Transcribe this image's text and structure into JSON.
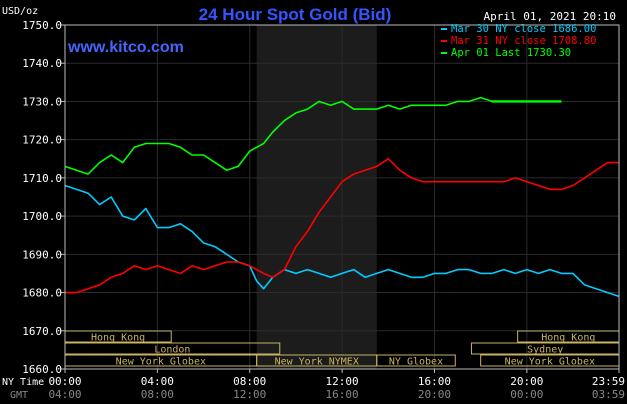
{
  "chart_data": {
    "type": "line",
    "title": "24 Hour Spot Gold (Bid)",
    "watermark": "www.kitco.com",
    "datetime": "April 01, 2021 20:10",
    "ylabel": "USD/oz",
    "ylim": [
      1660,
      1750
    ],
    "yticks": [
      "1750.0",
      "1740.0",
      "1730.0",
      "1720.0",
      "1710.0",
      "1700.0",
      "1690.0",
      "1680.0",
      "1670.0",
      "1660.0"
    ],
    "ny_time_label": "NY Time",
    "gmt_label": "GMT",
    "xticks_ny": [
      "00:00",
      "04:00",
      "08:00",
      "12:00",
      "16:00",
      "20:00",
      "23:59"
    ],
    "xticks_gmt": [
      "04:00",
      "08:00",
      "12:00",
      "16:00",
      "20:00",
      "00:00",
      "03:59"
    ],
    "grid": true,
    "legend_position": "top-right",
    "colors": {
      "background": "#000000",
      "grid": "#2a2a2a",
      "axis": "#bbbbbb",
      "title": "#3355ff",
      "watermark": "#4466ff",
      "shade": "#1c1c1c",
      "market": "#c8b464"
    },
    "shaded_hours": [
      8.3,
      13.5
    ],
    "series": [
      {
        "name": "Mar 30 NY close 1686.00",
        "color": "#00ccff",
        "x": [
          0,
          1,
          1.5,
          2,
          2.5,
          3,
          3.5,
          4,
          4.5,
          5,
          5.5,
          6,
          6.5,
          7,
          7.5,
          8,
          8.3,
          8.6,
          9,
          9.5,
          10,
          10.5,
          11,
          11.5,
          12,
          12.5,
          13,
          13.5,
          14,
          14.5,
          15,
          15.5,
          16,
          16.5,
          17,
          17.5,
          18,
          18.5,
          19,
          19.5,
          20,
          20.5,
          21,
          21.5,
          22,
          22.5,
          23,
          23.5,
          23.99
        ],
        "y": [
          1708,
          1706,
          1703,
          1705,
          1700,
          1699,
          1702,
          1697,
          1697,
          1698,
          1696,
          1693,
          1692,
          1690,
          1688,
          1687,
          1683,
          1681,
          1684,
          1686,
          1685,
          1686,
          1685,
          1684,
          1685,
          1686,
          1684,
          1685,
          1686,
          1685,
          1684,
          1684,
          1685,
          1685,
          1686,
          1686,
          1685,
          1685,
          1686,
          1685,
          1686,
          1685,
          1686,
          1685,
          1685,
          1682,
          1681,
          1680,
          1679
        ]
      },
      {
        "name": "Mar 31 NY close 1708.80",
        "color": "#ff0000",
        "x": [
          0,
          0.5,
          1,
          1.5,
          2,
          2.5,
          3,
          3.5,
          4,
          4.5,
          5,
          5.5,
          6,
          6.5,
          7,
          7.5,
          8,
          8.3,
          8.6,
          9,
          9.5,
          10,
          10.5,
          11,
          11.5,
          12,
          12.5,
          13,
          13.5,
          14,
          14.5,
          15,
          15.5,
          16,
          16.5,
          17,
          17.5,
          18,
          18.5,
          19,
          19.5,
          20,
          20.5,
          21,
          21.5,
          22,
          22.5,
          23,
          23.5,
          23.99
        ],
        "y": [
          1680,
          1680,
          1681,
          1682,
          1684,
          1685,
          1687,
          1686,
          1687,
          1686,
          1685,
          1687,
          1686,
          1687,
          1688,
          1688,
          1687,
          1686,
          1685,
          1684,
          1686,
          1692,
          1696,
          1701,
          1705,
          1709,
          1711,
          1712,
          1713,
          1715,
          1712,
          1710,
          1709,
          1709,
          1709,
          1709,
          1709,
          1709,
          1709,
          1709,
          1710,
          1709,
          1708,
          1707,
          1707,
          1708,
          1710,
          1712,
          1714,
          1714
        ]
      },
      {
        "name": "Apr 01 Last 1730.30",
        "color": "#00ff00",
        "x": [
          0,
          0.5,
          1,
          1.5,
          2,
          2.5,
          3,
          3.5,
          4,
          4.5,
          5,
          5.5,
          6,
          6.5,
          7,
          7.5,
          8,
          8.3,
          8.6,
          9,
          9.5,
          10,
          10.5,
          11,
          11.5,
          12,
          12.5,
          13,
          13.5,
          14,
          14.5,
          15,
          15.5,
          16,
          16.5,
          17,
          17.5,
          18,
          18.5,
          19,
          19.5,
          20,
          20.5,
          21,
          21.5
        ],
        "y": [
          1713,
          1712,
          1711,
          1714,
          1716,
          1714,
          1718,
          1719,
          1719,
          1719,
          1718,
          1716,
          1716,
          1714,
          1712,
          1713,
          1717,
          1718,
          1719,
          1722,
          1725,
          1727,
          1728,
          1730,
          1729,
          1730,
          1728,
          1728,
          1728,
          1729,
          1728,
          1729,
          1729,
          1729,
          1729,
          1730,
          1730,
          1731,
          1730,
          1730,
          1730,
          1730,
          1730,
          1730,
          1730
        ]
      }
    ],
    "markets": [
      {
        "label": "Hong Kong",
        "row": 0,
        "start": 0,
        "end": 4.6
      },
      {
        "label": "Hong Kong",
        "row": 0,
        "start": 19.6,
        "end": 23.99
      },
      {
        "label": "London",
        "row": 1,
        "start": 0,
        "end": 9.3
      },
      {
        "label": "Sydney",
        "row": 1,
        "start": 17.6,
        "end": 23.99
      },
      {
        "label": "New York Globex",
        "row": 2,
        "start": 0,
        "end": 8.3
      },
      {
        "label": "New York NYMEX",
        "row": 2,
        "start": 8.3,
        "end": 13.5
      },
      {
        "label": "NY Globex",
        "row": 2,
        "start": 13.5,
        "end": 16.9
      },
      {
        "label": "New York Globex",
        "row": 2,
        "start": 18.0,
        "end": 23.99
      }
    ]
  }
}
